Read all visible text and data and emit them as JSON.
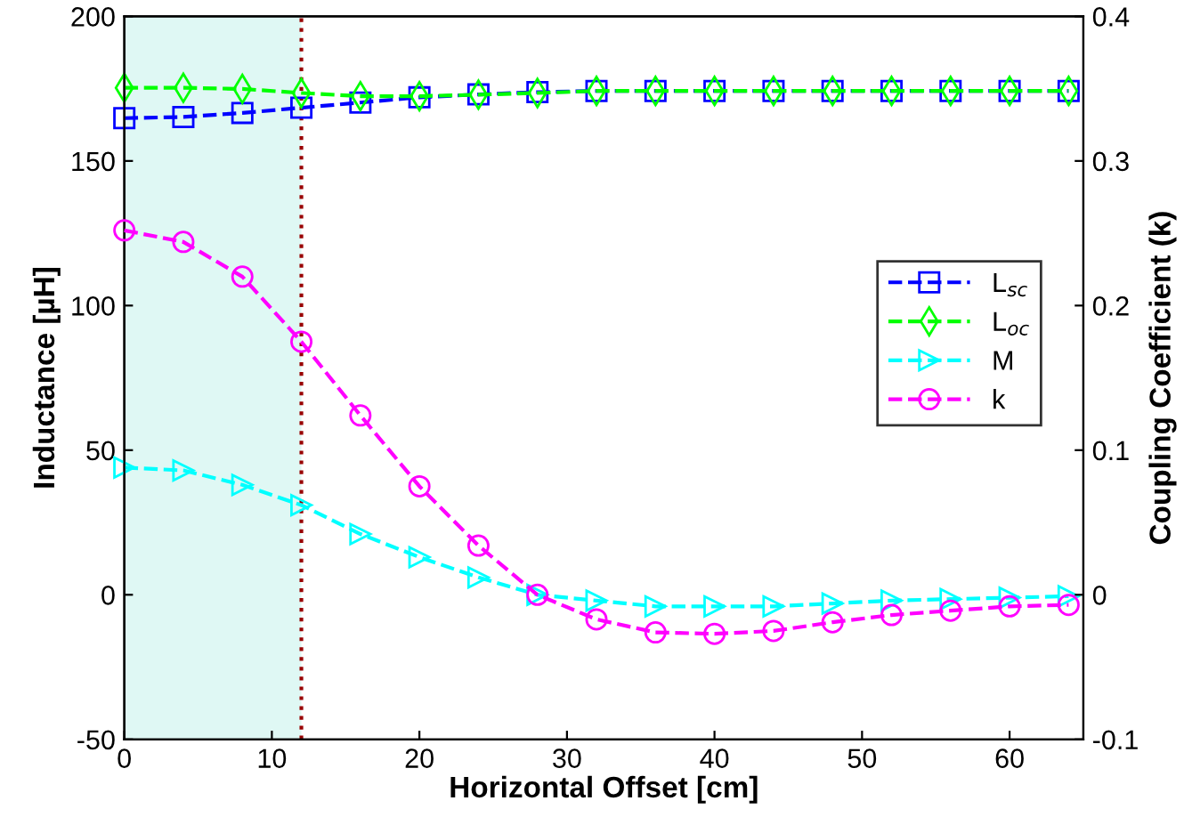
{
  "chart_data": {
    "type": "line",
    "xlabel": "Horizontal Offset [cm]",
    "ylabel": "Inductance [µH]",
    "y2label": "Coupling Coefficient (k)",
    "x": [
      0,
      4,
      8,
      12,
      16,
      20,
      24,
      28,
      32,
      36,
      40,
      44,
      48,
      52,
      56,
      60,
      64
    ],
    "series": [
      {
        "name": "L$_{sc}$",
        "color": "#0000ff",
        "marker": "square",
        "values": [
          164.8,
          165.2,
          166.6,
          168.4,
          170.2,
          172,
          173,
          173.8,
          174.2,
          174.2,
          174.2,
          174.2,
          174.2,
          174.2,
          174.2,
          174.2,
          174.2
        ]
      },
      {
        "name": "L$_{oc}$",
        "color": "#00ff00",
        "marker": "diamond",
        "values": [
          175.3,
          175.3,
          174.9,
          173.5,
          172.4,
          172.4,
          172.9,
          173.5,
          174.2,
          174.2,
          174.2,
          174.2,
          174.2,
          174.2,
          174.2,
          174.2,
          174.2
        ]
      },
      {
        "name": "M",
        "color": "#00ffff",
        "marker": "triangle",
        "values": [
          44,
          43,
          38,
          31,
          21,
          13,
          6,
          0,
          -2,
          -4,
          -4,
          -4,
          -3,
          -2,
          -1.5,
          -1,
          -0.5
        ]
      },
      {
        "name": "k",
        "color": "#ff00ff",
        "marker": "circle",
        "axis": "y2",
        "values": [
          0.252,
          0.244,
          0.22,
          0.175,
          0.124,
          0.075,
          0.034,
          0,
          -0.017,
          -0.026,
          -0.027,
          -0.025,
          -0.019,
          -0.014,
          -0.011,
          -0.008,
          -0.007
        ]
      }
    ],
    "line_style": "dashed",
    "xlim": [
      0,
      65
    ],
    "xticks": [
      0,
      10,
      20,
      30,
      40,
      50,
      60
    ],
    "ylim": [
      -50,
      200
    ],
    "yticks": [
      -50,
      0,
      50,
      100,
      150,
      200
    ],
    "y2lim": [
      -0.1,
      0.4
    ],
    "y2ticks": [
      -0.1,
      0,
      0.1,
      0.2,
      0.3,
      0.4
    ],
    "bands": [
      {
        "axis": "x",
        "from": 0,
        "to": 12,
        "color": "#dff8f4"
      }
    ],
    "ref_lines": [
      {
        "axis": "x",
        "value": 12,
        "color": "#990000",
        "line_style": "dotted"
      }
    ],
    "legend": "right",
    "grid": false
  }
}
